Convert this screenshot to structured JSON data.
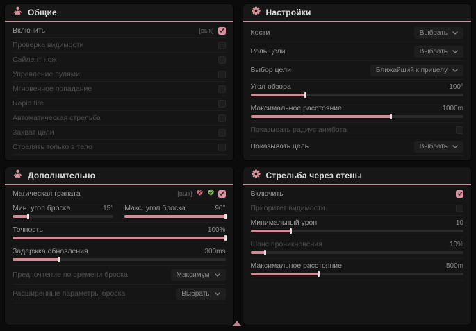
{
  "accent": "#d893a0",
  "misc": {
    "keybind_tag": "[вык]"
  },
  "panels": {
    "general": {
      "title": "Общие",
      "rows": [
        {
          "label": "Включить",
          "tag": "[вык]",
          "checked": true
        },
        {
          "label": "Проверка видимости",
          "checked": false
        },
        {
          "label": "Сайлент нож",
          "checked": false
        },
        {
          "label": "Управление пулями",
          "checked": false
        },
        {
          "label": "Мгновенное попадание",
          "checked": false
        },
        {
          "label": "Rapid fire",
          "checked": false
        },
        {
          "label": "Автоматическая стрельба",
          "checked": false
        },
        {
          "label": "Захват цели",
          "checked": false
        },
        {
          "label": "Стрелять только в тело",
          "checked": false
        }
      ]
    },
    "settings": {
      "title": "Настройки",
      "rows": {
        "bones": {
          "label": "Кости",
          "value": "Выбрать"
        },
        "target_role": {
          "label": "Роль цели",
          "value": "Выбрать"
        },
        "target_select": {
          "label": "Выбор цели",
          "value": "Ближайший к прицелу"
        },
        "fov": {
          "label": "Угол обзора",
          "value": "100°",
          "percent": 26
        },
        "max_distance": {
          "label": "Максимальное расстояние",
          "value": "1000m",
          "percent": 66
        },
        "show_radius": {
          "label": "Показывать радиус аимбота",
          "checked": false
        },
        "show_target": {
          "label": "Показывать цель",
          "value": "Выбрать"
        }
      }
    },
    "additional": {
      "title": "Дополнительно",
      "rows": {
        "magic_grenade": {
          "label": "Магическая граната",
          "tag": "[вык]",
          "checked": true
        },
        "min_angle": {
          "label": "Мин. угол броска",
          "value": "15°",
          "percent": 16
        },
        "max_angle": {
          "label": "Макс. угол броска",
          "value": "90°",
          "percent": 100
        },
        "accuracy": {
          "label": "Точность",
          "value": "100%",
          "percent": 100
        },
        "update_delay": {
          "label": "Задержка обновления",
          "value": "300ms",
          "percent": 22
        },
        "throw_time": {
          "label": "Предпочтение по времени броска",
          "value": "Максимум"
        },
        "advanced": {
          "label": "Расширенные параметры броска",
          "value": "Выбрать"
        }
      }
    },
    "wallbang": {
      "title": "Стрельба через стены",
      "rows": {
        "enable": {
          "label": "Включить",
          "checked": true
        },
        "visibility_priority": {
          "label": "Приоритет видимости",
          "checked": false
        },
        "min_damage": {
          "label": "Минимальный урон",
          "value": "10",
          "percent": 19
        },
        "penetration_chance": {
          "label": "Шанс проникновения",
          "value": "10%",
          "percent": 7
        },
        "max_distance": {
          "label": "Максимальное расстояние",
          "value": "500m",
          "percent": 32
        }
      }
    }
  }
}
